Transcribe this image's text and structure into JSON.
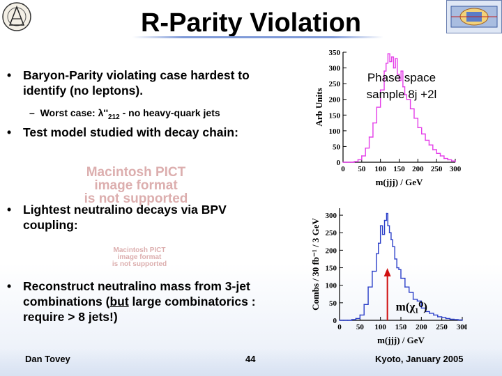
{
  "slide": {
    "title": "R-Parity Violation",
    "bullets": [
      {
        "marker": "•",
        "text": "Baryon-Parity violating case hardest to identify (no leptons)."
      },
      {
        "marker": "•",
        "text": "Test model studied with decay chain:"
      },
      {
        "marker": "•",
        "text": "Lightest neutralino decays via BPV coupling:"
      },
      {
        "marker": "•",
        "text": "Reconstruct neutralino mass from 3-jet combinations (but large combinatorics : require > 8 jets!)"
      }
    ],
    "bullet4_underlined": "but",
    "sub_bullet": {
      "dash": "–",
      "prefix": "Worst case: ",
      "lambda": "λ''",
      "subscript": "212",
      "suffix": " -  no heavy-quark jets"
    },
    "pict_placeholder": {
      "line1": "Macintosh PICT",
      "line2": "image format",
      "line3": "is not supported"
    },
    "footer": {
      "author": "Dan Tovey",
      "page": "44",
      "venue": "Kyoto, January 2005"
    }
  },
  "chart_data": [
    {
      "type": "line",
      "title": "",
      "annotation": "Phase space sample 8j +2l",
      "xlabel": "m(jjj) / GeV",
      "ylabel": "Arb Units",
      "xlim": [
        0,
        300
      ],
      "ylim": [
        0,
        350
      ],
      "xticks": [
        0,
        50,
        100,
        150,
        200,
        250,
        300
      ],
      "yticks": [
        0,
        50,
        100,
        150,
        200,
        250,
        300,
        350
      ],
      "color": "#e43ce8",
      "x": [
        0,
        10,
        20,
        30,
        40,
        50,
        60,
        70,
        80,
        90,
        100,
        110,
        115,
        120,
        125,
        130,
        135,
        140,
        145,
        150,
        155,
        160,
        165,
        170,
        180,
        190,
        200,
        210,
        220,
        230,
        240,
        250,
        260,
        270,
        280,
        290,
        300
      ],
      "y": [
        0,
        0,
        0,
        2,
        8,
        20,
        45,
        80,
        125,
        175,
        230,
        290,
        315,
        345,
        320,
        335,
        300,
        330,
        280,
        260,
        290,
        240,
        215,
        200,
        170,
        140,
        110,
        90,
        70,
        55,
        40,
        28,
        20,
        12,
        8,
        4,
        2
      ]
    },
    {
      "type": "line",
      "title": "",
      "annotation": "m(χ₁⁰)",
      "xlabel": "m(jjj) / GeV",
      "ylabel": "Combs / 30 fb⁻¹ / 3 GeV",
      "xlim": [
        0,
        300
      ],
      "ylim": [
        0,
        320
      ],
      "xticks": [
        0,
        50,
        100,
        150,
        200,
        250,
        300
      ],
      "yticks": [
        0,
        50,
        100,
        150,
        200,
        250,
        300
      ],
      "color": "#2a3ec8",
      "marker_x": 117,
      "x": [
        0,
        10,
        20,
        30,
        40,
        50,
        60,
        70,
        80,
        90,
        95,
        100,
        105,
        110,
        115,
        118,
        122,
        126,
        130,
        135,
        140,
        145,
        150,
        160,
        170,
        180,
        190,
        200,
        210,
        220,
        230,
        240,
        250,
        260,
        270,
        280,
        290,
        300
      ],
      "y": [
        0,
        0,
        0,
        2,
        5,
        15,
        45,
        95,
        140,
        190,
        220,
        270,
        245,
        285,
        305,
        270,
        250,
        230,
        210,
        175,
        150,
        145,
        120,
        95,
        80,
        60,
        55,
        35,
        25,
        20,
        15,
        10,
        8,
        5,
        3,
        2,
        1,
        0
      ]
    }
  ]
}
